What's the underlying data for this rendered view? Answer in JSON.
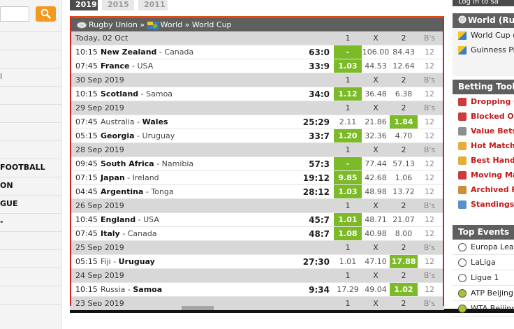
{
  "year_tabs": [
    "2019",
    "2015",
    "2011"
  ],
  "breadcrumb": {
    "sport": "Rugby Union",
    "sep1": "»",
    "country": "World",
    "sep2": "»",
    "tournament": "World Cup"
  },
  "left_sidebar": {
    "items": [
      {
        "label": "",
        "link": false
      },
      {
        "label": "",
        "link": false
      },
      {
        "label": "l",
        "link": true
      },
      {
        "label": "",
        "link": false
      },
      {
        "label": "",
        "link": false
      },
      {
        "label": "",
        "link": false
      },
      {
        "label": "",
        "link": false
      },
      {
        "label": "FOOTBALL",
        "link": false
      },
      {
        "label": "ON",
        "link": false
      },
      {
        "label": "GUE",
        "link": false
      },
      {
        "label": "-",
        "link": false
      },
      {
        "label": "",
        "link": false
      },
      {
        "label": "",
        "link": false
      },
      {
        "label": "",
        "link": false
      },
      {
        "label": "",
        "link": false
      },
      {
        "label": "",
        "link": false
      }
    ]
  },
  "table": {
    "col1": "1",
    "colx": "X",
    "col2": "2",
    "colbs": "B's",
    "rows": [
      {
        "type": "date",
        "label": "Today, 02 Oct"
      },
      {
        "type": "match",
        "time": "10:15",
        "home": "New Zealand",
        "away": "Canada",
        "winner": "home",
        "score": "63:0",
        "o1": "-",
        "ox": "106.00",
        "o2": "84.43",
        "bs": "12",
        "hl": "1"
      },
      {
        "type": "match",
        "time": "07:45",
        "home": "France",
        "away": "USA",
        "winner": "home",
        "score": "33:9",
        "o1": "1.03",
        "ox": "44.53",
        "o2": "12.64",
        "bs": "12",
        "hl": "1"
      },
      {
        "type": "date",
        "label": "30 Sep 2019"
      },
      {
        "type": "match",
        "time": "10:15",
        "home": "Scotland",
        "away": "Samoa",
        "winner": "home",
        "score": "34:0",
        "o1": "1.12",
        "ox": "36.48",
        "o2": "6.38",
        "bs": "12",
        "hl": "1"
      },
      {
        "type": "date",
        "label": "29 Sep 2019"
      },
      {
        "type": "match",
        "time": "07:45",
        "home": "Australia",
        "away": "Wales",
        "winner": "away",
        "score": "25:29",
        "o1": "2.11",
        "ox": "21.86",
        "o2": "1.84",
        "bs": "12",
        "hl": "2"
      },
      {
        "type": "match",
        "time": "05:15",
        "home": "Georgia",
        "away": "Uruguay",
        "winner": "home",
        "score": "33:7",
        "o1": "1.20",
        "ox": "32.36",
        "o2": "4.70",
        "bs": "12",
        "hl": "1"
      },
      {
        "type": "date",
        "label": "28 Sep 2019"
      },
      {
        "type": "match",
        "time": "09:45",
        "home": "South Africa",
        "away": "Namibia",
        "winner": "home",
        "score": "57:3",
        "o1": "-",
        "ox": "77.44",
        "o2": "57.13",
        "bs": "12",
        "hl": "1"
      },
      {
        "type": "match",
        "time": "07:15",
        "home": "Japan",
        "away": "Ireland",
        "winner": "home",
        "score": "19:12",
        "o1": "9.85",
        "ox": "42.68",
        "o2": "1.06",
        "bs": "12",
        "hl": "1"
      },
      {
        "type": "match",
        "time": "04:45",
        "home": "Argentina",
        "away": "Tonga",
        "winner": "home",
        "score": "28:12",
        "o1": "1.03",
        "ox": "48.98",
        "o2": "13.72",
        "bs": "12",
        "hl": "1"
      },
      {
        "type": "date",
        "label": "26 Sep 2019"
      },
      {
        "type": "match",
        "time": "10:45",
        "home": "England",
        "away": "USA",
        "winner": "home",
        "score": "45:7",
        "o1": "1.01",
        "ox": "48.71",
        "o2": "21.07",
        "bs": "12",
        "hl": "1"
      },
      {
        "type": "match",
        "time": "07:45",
        "home": "Italy",
        "away": "Canada",
        "winner": "home",
        "score": "48:7",
        "o1": "1.08",
        "ox": "40.98",
        "o2": "8.00",
        "bs": "12",
        "hl": "1"
      },
      {
        "type": "date",
        "label": "25 Sep 2019"
      },
      {
        "type": "match",
        "time": "05:15",
        "home": "Fiji",
        "away": "Uruguay",
        "winner": "away",
        "score": "27:30",
        "o1": "1.01",
        "ox": "47.10",
        "o2": "17.88",
        "bs": "12",
        "hl": "2"
      },
      {
        "type": "date",
        "label": "24 Sep 2019"
      },
      {
        "type": "match",
        "time": "10:15",
        "home": "Russia",
        "away": "Samoa",
        "winner": "away",
        "score": "9:34",
        "o1": "17.29",
        "ox": "49.04",
        "o2": "1.02",
        "bs": "12",
        "hl": "2"
      },
      {
        "type": "date",
        "label": "23 Sep 2019"
      }
    ]
  },
  "right_sidebar": {
    "login": "Log in to sa",
    "league_box": {
      "title": "World (Rug",
      "items": [
        "World Cup (",
        "Guinness Pro"
      ]
    },
    "tools_box": {
      "title": "Betting Tools",
      "items": [
        "Dropping O",
        "Blocked Od",
        "Value Bets",
        "Hot Matche",
        "Best Handic",
        "Moving Mar",
        "Archived R",
        "Standings"
      ]
    },
    "events_box": {
      "title": "Top Events",
      "items": [
        "Europa Leag",
        "LaLiga",
        "Ligue 1",
        "ATP Beijing",
        "WTA Beijing"
      ]
    }
  },
  "colors": {
    "accent_orange": "#f39a1e",
    "win_green": "#7cba28",
    "frame_red": "#cf2121",
    "header_gray": "#5f5f5f"
  }
}
